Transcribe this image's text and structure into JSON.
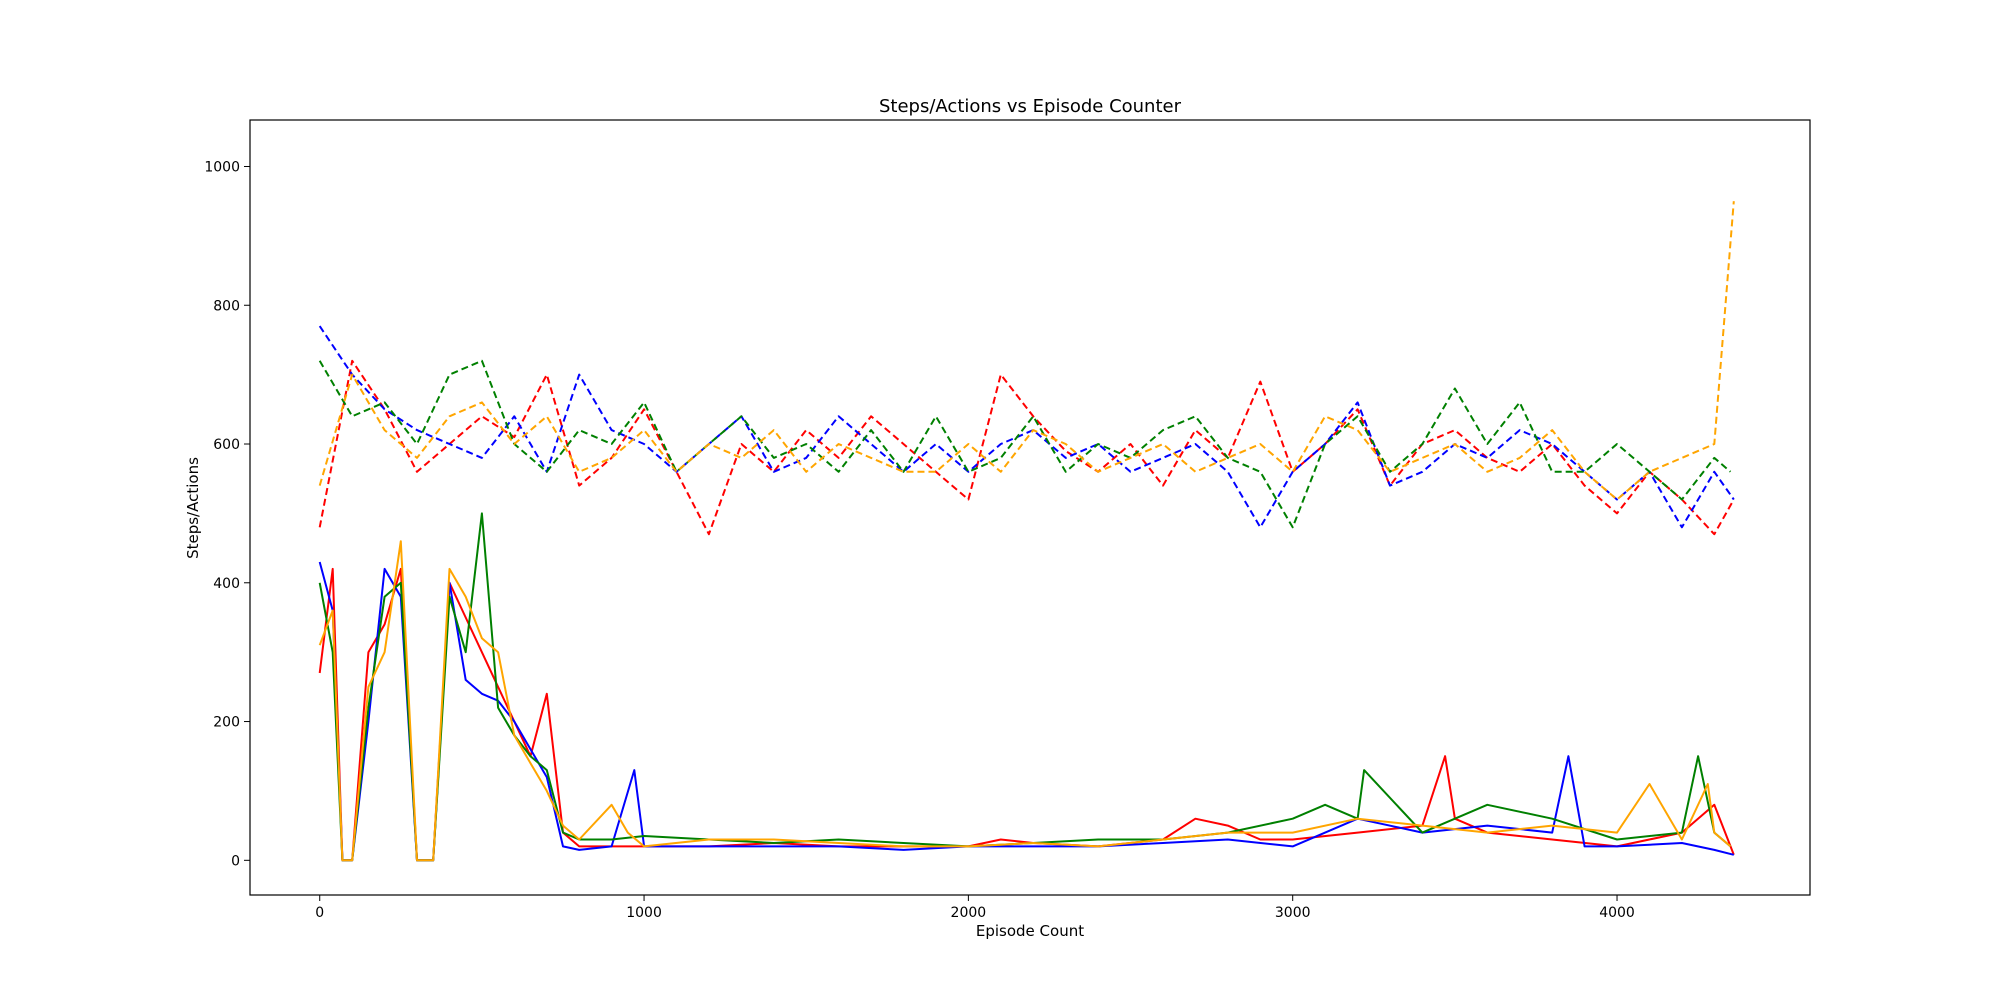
{
  "chart_data": {
    "type": "line",
    "title": "Steps/Actions vs Episode Counter",
    "xlabel": "Episode Count",
    "ylabel": "Steps/Actions",
    "xlim": [
      -215,
      4595
    ],
    "ylim": [
      -50,
      1067
    ],
    "xticks": [
      0,
      1000,
      2000,
      3000,
      4000
    ],
    "yticks": [
      0,
      200,
      400,
      600,
      800,
      1000
    ],
    "grid": false,
    "legend": "none",
    "series": [
      {
        "color": "#ff0000",
        "style": "dashed",
        "x": [
          0,
          100,
          200,
          300,
          400,
          500,
          600,
          700,
          800,
          900,
          1000,
          1100,
          1200,
          1300,
          1400,
          1500,
          1600,
          1700,
          1800,
          1900,
          2000,
          2100,
          2200,
          2300,
          2400,
          2500,
          2600,
          2700,
          2800,
          2900,
          3000,
          3100,
          3200,
          3300,
          3400,
          3500,
          3600,
          3700,
          3800,
          3900,
          4000,
          4100,
          4200,
          4300,
          4360
        ],
        "y": [
          480,
          720,
          650,
          560,
          600,
          640,
          610,
          700,
          540,
          580,
          650,
          560,
          470,
          600,
          560,
          620,
          580,
          640,
          600,
          560,
          520,
          700,
          640,
          590,
          560,
          600,
          540,
          620,
          580,
          690,
          560,
          600,
          650,
          540,
          600,
          620,
          580,
          560,
          600,
          540,
          500,
          560,
          520,
          470,
          520
        ]
      },
      {
        "color": "#0000ff",
        "style": "dashed",
        "x": [
          0,
          100,
          200,
          300,
          400,
          500,
          600,
          700,
          800,
          900,
          1000,
          1100,
          1200,
          1300,
          1400,
          1500,
          1600,
          1700,
          1800,
          1900,
          2000,
          2100,
          2200,
          2300,
          2400,
          2500,
          2600,
          2700,
          2800,
          2900,
          3000,
          3100,
          3200,
          3300,
          3400,
          3500,
          3600,
          3700,
          3800,
          3900,
          4000,
          4100,
          4200,
          4300,
          4360
        ],
        "y": [
          770,
          700,
          650,
          620,
          600,
          580,
          640,
          560,
          700,
          620,
          600,
          560,
          600,
          640,
          560,
          580,
          640,
          600,
          560,
          600,
          560,
          600,
          620,
          580,
          600,
          560,
          580,
          600,
          560,
          480,
          560,
          600,
          660,
          540,
          560,
          600,
          580,
          620,
          600,
          560,
          520,
          560,
          480,
          560,
          520
        ]
      },
      {
        "color": "#008000",
        "style": "dashed",
        "x": [
          0,
          100,
          200,
          300,
          400,
          500,
          600,
          700,
          800,
          900,
          1000,
          1100,
          1200,
          1300,
          1400,
          1500,
          1600,
          1700,
          1800,
          1900,
          2000,
          2100,
          2200,
          2300,
          2400,
          2500,
          2600,
          2700,
          2800,
          2900,
          3000,
          3100,
          3200,
          3300,
          3400,
          3500,
          3600,
          3700,
          3800,
          3900,
          4000,
          4100,
          4200,
          4300,
          4350
        ],
        "y": [
          720,
          640,
          660,
          600,
          700,
          720,
          600,
          560,
          620,
          600,
          660,
          560,
          600,
          640,
          580,
          600,
          560,
          620,
          560,
          640,
          560,
          580,
          640,
          560,
          600,
          580,
          620,
          640,
          580,
          560,
          480,
          600,
          640,
          560,
          600,
          680,
          600,
          660,
          560,
          560,
          600,
          560,
          520,
          580,
          560
        ]
      },
      {
        "color": "#ffa500",
        "style": "dashed",
        "x": [
          0,
          100,
          200,
          300,
          400,
          500,
          600,
          700,
          800,
          900,
          1000,
          1100,
          1200,
          1300,
          1400,
          1500,
          1600,
          1700,
          1800,
          1900,
          2000,
          2100,
          2200,
          2300,
          2400,
          2500,
          2600,
          2700,
          2800,
          2900,
          3000,
          3100,
          3200,
          3300,
          3400,
          3500,
          3600,
          3700,
          3800,
          3900,
          4000,
          4100,
          4200,
          4300,
          4360
        ],
        "y": [
          540,
          700,
          620,
          580,
          640,
          660,
          600,
          640,
          560,
          580,
          620,
          560,
          600,
          580,
          620,
          560,
          600,
          580,
          560,
          560,
          600,
          560,
          620,
          600,
          560,
          580,
          600,
          560,
          580,
          600,
          560,
          640,
          620,
          560,
          580,
          600,
          560,
          580,
          620,
          560,
          520,
          560,
          580,
          600,
          950
        ]
      },
      {
        "color": "#ff0000",
        "style": "solid",
        "x": [
          0,
          40,
          70,
          100,
          150,
          200,
          250,
          300,
          350,
          400,
          450,
          500,
          550,
          600,
          650,
          700,
          750,
          800,
          900,
          1000,
          1200,
          1400,
          1600,
          1800,
          2000,
          2100,
          2200,
          2400,
          2600,
          2700,
          2800,
          2900,
          3000,
          3200,
          3400,
          3470,
          3500,
          3600,
          3800,
          4000,
          4200,
          4300,
          4360
        ],
        "y": [
          270,
          420,
          0,
          0,
          300,
          340,
          420,
          0,
          0,
          400,
          350,
          300,
          250,
          200,
          150,
          240,
          40,
          20,
          20,
          20,
          20,
          25,
          20,
          20,
          20,
          30,
          25,
          20,
          30,
          60,
          50,
          30,
          30,
          40,
          50,
          150,
          60,
          40,
          30,
          20,
          40,
          80,
          8
        ]
      },
      {
        "color": "#0000ff",
        "style": "solid",
        "x": [
          0,
          40,
          70,
          100,
          150,
          200,
          250,
          300,
          350,
          400,
          450,
          500,
          550,
          600,
          650,
          700,
          750,
          800,
          900,
          970,
          1000,
          1200,
          1400,
          1600,
          1800,
          2000,
          2200,
          2400,
          2600,
          2800,
          3000,
          3200,
          3400,
          3600,
          3800,
          3850,
          3900,
          4000,
          4200,
          4300,
          4360
        ],
        "y": [
          430,
          360,
          0,
          0,
          200,
          420,
          380,
          0,
          0,
          400,
          260,
          240,
          230,
          200,
          160,
          120,
          20,
          15,
          20,
          130,
          20,
          20,
          20,
          20,
          15,
          20,
          20,
          20,
          25,
          30,
          20,
          60,
          40,
          50,
          40,
          150,
          20,
          20,
          25,
          15,
          8
        ]
      },
      {
        "color": "#008000",
        "style": "solid",
        "x": [
          0,
          40,
          70,
          100,
          150,
          200,
          250,
          300,
          350,
          400,
          450,
          500,
          550,
          600,
          650,
          700,
          750,
          800,
          900,
          1000,
          1200,
          1400,
          1600,
          1800,
          2000,
          2200,
          2400,
          2600,
          2800,
          3000,
          3100,
          3200,
          3220,
          3400,
          3600,
          3800,
          4000,
          4200,
          4250,
          4300,
          4350
        ],
        "y": [
          400,
          300,
          0,
          0,
          220,
          380,
          400,
          0,
          0,
          380,
          300,
          500,
          220,
          180,
          150,
          130,
          40,
          30,
          30,
          35,
          30,
          25,
          30,
          25,
          20,
          25,
          30,
          30,
          40,
          60,
          80,
          60,
          130,
          40,
          80,
          60,
          30,
          40,
          150,
          40,
          20
        ]
      },
      {
        "color": "#ffa500",
        "style": "solid",
        "x": [
          0,
          40,
          70,
          100,
          150,
          200,
          250,
          300,
          350,
          400,
          450,
          500,
          550,
          600,
          650,
          700,
          750,
          800,
          900,
          950,
          1000,
          1200,
          1400,
          1600,
          1800,
          2000,
          2200,
          2400,
          2600,
          2800,
          3000,
          3200,
          3400,
          3600,
          3800,
          4000,
          4100,
          4200,
          4280,
          4300,
          4350
        ],
        "y": [
          310,
          360,
          0,
          0,
          250,
          300,
          460,
          0,
          0,
          420,
          380,
          320,
          300,
          180,
          140,
          100,
          50,
          30,
          80,
          40,
          20,
          30,
          30,
          25,
          20,
          20,
          25,
          20,
          30,
          40,
          40,
          60,
          50,
          40,
          50,
          40,
          110,
          30,
          110,
          40,
          20
        ]
      }
    ]
  }
}
